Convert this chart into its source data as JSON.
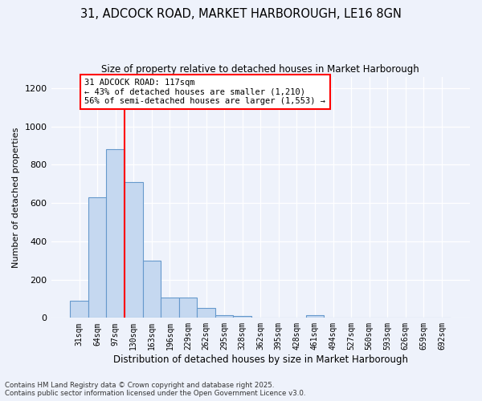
{
  "title1": "31, ADCOCK ROAD, MARKET HARBOROUGH, LE16 8GN",
  "title2": "Size of property relative to detached houses in Market Harborough",
  "xlabel": "Distribution of detached houses by size in Market Harborough",
  "ylabel": "Number of detached properties",
  "categories": [
    "31sqm",
    "64sqm",
    "97sqm",
    "130sqm",
    "163sqm",
    "196sqm",
    "229sqm",
    "262sqm",
    "295sqm",
    "328sqm",
    "362sqm",
    "395sqm",
    "428sqm",
    "461sqm",
    "494sqm",
    "527sqm",
    "560sqm",
    "593sqm",
    "626sqm",
    "659sqm",
    "692sqm"
  ],
  "values": [
    90,
    630,
    880,
    710,
    300,
    105,
    105,
    50,
    15,
    10,
    0,
    0,
    0,
    15,
    0,
    0,
    0,
    0,
    0,
    0,
    0
  ],
  "bar_color": "#c5d8f0",
  "bar_edge_color": "#6699cc",
  "vline_color": "red",
  "vline_position": 2.5,
  "annotation_text": "31 ADCOCK ROAD: 117sqm\n← 43% of detached houses are smaller (1,210)\n56% of semi-detached houses are larger (1,553) →",
  "annotation_box_color": "white",
  "annotation_box_edge_color": "red",
  "ylim": [
    0,
    1260
  ],
  "yticks": [
    0,
    200,
    400,
    600,
    800,
    1000,
    1200
  ],
  "footer1": "Contains HM Land Registry data © Crown copyright and database right 2025.",
  "footer2": "Contains public sector information licensed under the Open Government Licence v3.0.",
  "bg_color": "#eef2fb"
}
